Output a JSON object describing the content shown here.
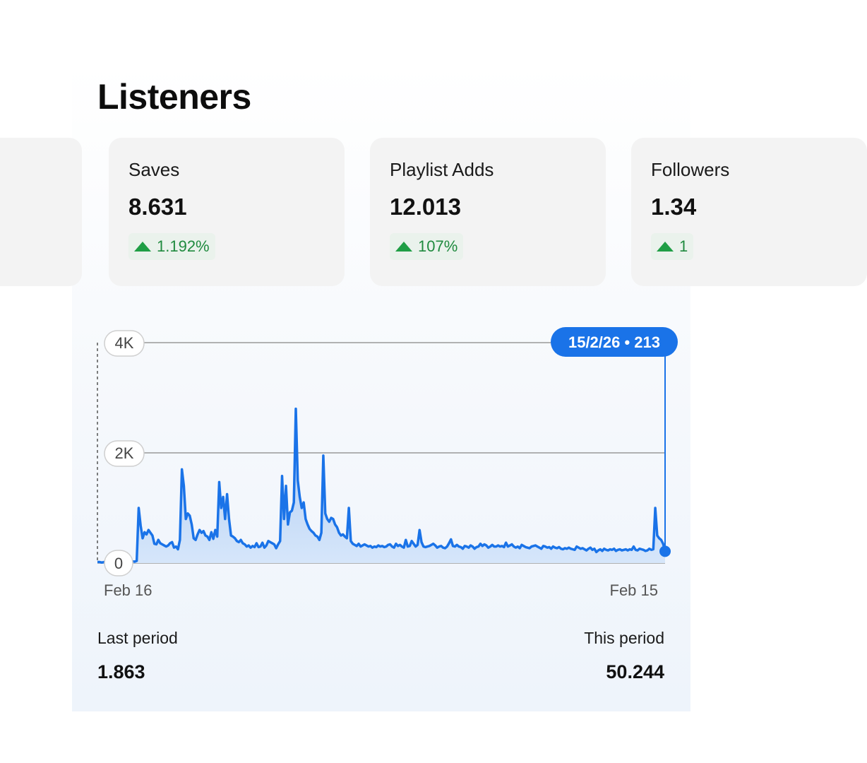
{
  "title": "Listeners",
  "cards": [
    {
      "label": "",
      "value": "",
      "delta": ""
    },
    {
      "label": "Saves",
      "value": "8.631",
      "delta": "1.192%"
    },
    {
      "label": "Playlist Adds",
      "value": "12.013",
      "delta": "107%"
    },
    {
      "label": "Followers",
      "value": "1.34",
      "delta": "1"
    }
  ],
  "colors": {
    "accent": "#1a73e8",
    "positive": "#1f8a3e",
    "card_bg": "#f3f3f3"
  },
  "chart_data": {
    "type": "area",
    "x_start_label": "Feb 16",
    "x_end_label": "Feb 15",
    "yticks": [
      "4K",
      "2K",
      "0"
    ],
    "ylim": [
      0,
      4000
    ],
    "grid": true,
    "tooltip": {
      "date": "15/2/26",
      "value": 213,
      "text": "15/2/26 • 213"
    },
    "values": [
      20,
      20,
      10,
      15,
      25,
      20,
      20,
      15,
      30,
      25,
      20,
      30,
      40,
      30,
      50,
      25,
      20,
      15,
      30,
      25,
      40,
      1000,
      680,
      450,
      560,
      520,
      600,
      550,
      500,
      350,
      340,
      420,
      360,
      340,
      320,
      300,
      320,
      360,
      380,
      280,
      300,
      250,
      420,
      1700,
      1400,
      800,
      900,
      860,
      700,
      450,
      420,
      520,
      600,
      550,
      580,
      500,
      480,
      420,
      560,
      440,
      600,
      480,
      1470,
      1000,
      1200,
      800,
      1250,
      800,
      500,
      480,
      450,
      400,
      380,
      420,
      360,
      340,
      300,
      320,
      280,
      310,
      290,
      360,
      290,
      300,
      370,
      280,
      320,
      400,
      380,
      360,
      340,
      270,
      340,
      400,
      1580,
      800,
      1400,
      700,
      920,
      950,
      1100,
      2800,
      1500,
      1200,
      1000,
      1100,
      800,
      700,
      620,
      580,
      550,
      500,
      480,
      420,
      550,
      1950,
      900,
      800,
      750,
      820,
      800,
      700,
      650,
      550,
      500,
      520,
      480,
      450,
      1000,
      400,
      350,
      330,
      310,
      350,
      300,
      320,
      340,
      320,
      300,
      310,
      280,
      300,
      290,
      320,
      300,
      310,
      290,
      300,
      330,
      340,
      300,
      280,
      350,
      310,
      330,
      300,
      280,
      420,
      300,
      310,
      400,
      350,
      300,
      330,
      600,
      380,
      300,
      290,
      300,
      310,
      330,
      350,
      320,
      280,
      300,
      310,
      280,
      270,
      300,
      360,
      430,
      310,
      300,
      330,
      300,
      290,
      260,
      310,
      300,
      280,
      320,
      300,
      260,
      290,
      300,
      350,
      310,
      340,
      320,
      280,
      300,
      330,
      300,
      300,
      320,
      300,
      310,
      290,
      370,
      300,
      320,
      340,
      300,
      280,
      300,
      270,
      330,
      310,
      290,
      280,
      270,
      300,
      310,
      320,
      300,
      280,
      260,
      310,
      300,
      280,
      290,
      260,
      300,
      280,
      270,
      290,
      260,
      250,
      270,
      260,
      280,
      260,
      250,
      240,
      300,
      280,
      260,
      270,
      250,
      230,
      260,
      280,
      240,
      260,
      200,
      230,
      250,
      220,
      260,
      240,
      230,
      250,
      240,
      260,
      220,
      240,
      250,
      230,
      240,
      250,
      230,
      250,
      240,
      300,
      240,
      230,
      260,
      250,
      240,
      220,
      230,
      260,
      240,
      250,
      1000,
      500,
      450,
      420,
      350,
      213
    ]
  },
  "footer": {
    "last_label": "Last period",
    "last_value": "1.863",
    "this_label": "This period",
    "this_value": "50.244"
  }
}
